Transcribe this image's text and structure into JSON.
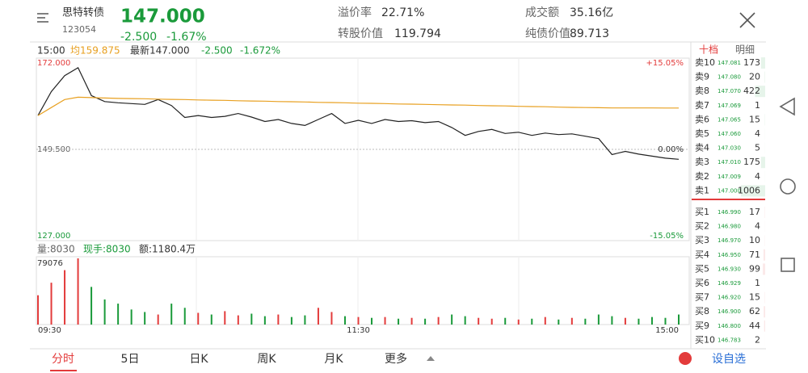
{
  "header": {
    "name": "思特转债",
    "code": "123054",
    "price": "147.000",
    "change": "-2.500",
    "change_pct": "-1.67%",
    "stats": [
      {
        "label": "溢价率",
        "value": "22.71%"
      },
      {
        "label": "成交额",
        "value": "35.16亿"
      },
      {
        "label": "转股价值",
        "value": "119.794"
      },
      {
        "label": "纯债价值",
        "value": "89.713"
      }
    ]
  },
  "chart_info": {
    "time": "15:00",
    "avg": "均159.875",
    "latest": "最新147.000",
    "change": "-2.500",
    "change_pct": "-1.672%"
  },
  "chart_data": [
    {
      "type": "line",
      "categories": [
        "09:30",
        null,
        null,
        null,
        null,
        null,
        null,
        null,
        null,
        null,
        null,
        null,
        null,
        null,
        null,
        null,
        null,
        null,
        null,
        null,
        null,
        null,
        null,
        null,
        "11:30",
        null,
        null,
        null,
        null,
        null,
        null,
        null,
        null,
        null,
        null,
        null,
        null,
        null,
        null,
        null,
        null,
        null,
        null,
        null,
        null,
        null,
        null,
        null,
        "15:00"
      ],
      "ylim": [
        127,
        172
      ],
      "yticks": [
        {
          "value": 172,
          "label": "172.000"
        },
        {
          "value": 149.5,
          "label": "149.500"
        },
        {
          "value": 127,
          "label": "127.000"
        }
      ],
      "y2lim": [
        -15.05,
        15.05
      ],
      "y2ticks": [
        {
          "value": 15.05,
          "label": "+15.05%"
        },
        {
          "value": 0,
          "label": "0.00%"
        },
        {
          "value": -15.05,
          "label": "-15.05%"
        }
      ],
      "series": [
        {
          "color": "#222222",
          "values": [
            158,
            164,
            168,
            170,
            163,
            161.5,
            161.2,
            161,
            160.8,
            162,
            160.5,
            157.5,
            158,
            157.5,
            157.8,
            158.5,
            157.6,
            156.5,
            157,
            156,
            155.5,
            157,
            158.5,
            156,
            156.8,
            156,
            157,
            156.5,
            156.7,
            156.2,
            156.5,
            155,
            153,
            154,
            154.5,
            153.5,
            153.8,
            153,
            153.6,
            153.2,
            153.4,
            152.8,
            152.2,
            148.2,
            149,
            148.3,
            147.8,
            147.3,
            147
          ]
        },
        {
          "color": "#e8a020",
          "values": [
            158,
            160,
            162,
            162.6,
            162.5,
            162.4,
            162.3,
            162.25,
            162.2,
            162.1,
            162.05,
            162,
            161.9,
            161.85,
            161.8,
            161.7,
            161.65,
            161.6,
            161.5,
            161.45,
            161.4,
            161.3,
            161.25,
            161.2,
            161.1,
            161.05,
            161,
            160.9,
            160.85,
            160.8,
            160.7,
            160.65,
            160.6,
            160.5,
            160.45,
            160.4,
            160.3,
            160.25,
            160.2,
            160.1,
            160.05,
            160,
            159.95,
            159.9,
            159.9,
            159.9,
            159.9,
            159.88,
            159.875
          ]
        }
      ]
    },
    {
      "type": "bar",
      "info": [
        "量:8030",
        "现手:8030",
        "额:1180.4万"
      ],
      "ylim": [
        0,
        79076
      ],
      "yticks": [
        79076
      ],
      "values": [
        35000,
        50000,
        65000,
        79076,
        45000,
        30000,
        25000,
        18000,
        15000,
        12000,
        25000,
        20000,
        14000,
        12000,
        16000,
        11000,
        13000,
        10000,
        12000,
        9000,
        11000,
        20000,
        15000,
        10000,
        9000,
        8000,
        9000,
        7000,
        8000,
        7000,
        9000,
        12000,
        10000,
        8000,
        7000,
        8000,
        6000,
        7000,
        9000,
        6000,
        8000,
        7000,
        12000,
        10000,
        8000,
        7000,
        9000,
        8000,
        12000
      ]
    }
  ],
  "order_book": {
    "tabs": [
      "十档",
      "明细"
    ],
    "sell": [
      {
        "label": "卖10",
        "price": "147.081",
        "volume": 173
      },
      {
        "label": "卖9",
        "price": "147.080",
        "volume": 20
      },
      {
        "label": "卖8",
        "price": "147.070",
        "volume": 422
      },
      {
        "label": "卖7",
        "price": "147.069",
        "volume": 1
      },
      {
        "label": "卖6",
        "price": "147.065",
        "volume": 15
      },
      {
        "label": "卖5",
        "price": "147.060",
        "volume": 4
      },
      {
        "label": "卖4",
        "price": "147.030",
        "volume": 5
      },
      {
        "label": "卖3",
        "price": "147.010",
        "volume": 175
      },
      {
        "label": "卖2",
        "price": "147.009",
        "volume": 4
      },
      {
        "label": "卖1",
        "price": "147.000",
        "volume": 1006
      }
    ],
    "buy": [
      {
        "label": "买1",
        "price": "146.990",
        "volume": 17
      },
      {
        "label": "买2",
        "price": "146.980",
        "volume": 4
      },
      {
        "label": "买3",
        "price": "146.970",
        "volume": 10
      },
      {
        "label": "买4",
        "price": "146.950",
        "volume": 71
      },
      {
        "label": "买5",
        "price": "146.930",
        "volume": 99
      },
      {
        "label": "买6",
        "price": "146.929",
        "volume": 1
      },
      {
        "label": "买7",
        "price": "146.920",
        "volume": 15
      },
      {
        "label": "买8",
        "price": "146.900",
        "volume": 62
      },
      {
        "label": "买9",
        "price": "146.800",
        "volume": 44
      },
      {
        "label": "买10",
        "price": "146.783",
        "volume": 2
      }
    ]
  },
  "tabs": [
    "分时",
    "5日",
    "日K",
    "周K",
    "月K",
    "更多"
  ],
  "watchlist": "设自选"
}
